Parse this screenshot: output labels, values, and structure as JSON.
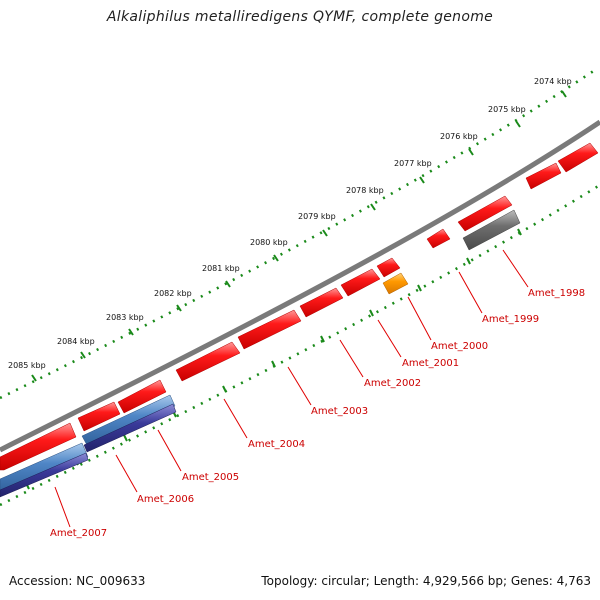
{
  "header": {
    "title": "Alkaliphilus metalliredigens QYMF, complete genome"
  },
  "footer": {
    "accession": "Accession: NC_009633",
    "summary": "Topology: circular; Length: 4,929,566 bp; Genes: 4,763"
  },
  "scale_labels": [
    "2074 kbp",
    "2075 kbp",
    "2076 kbp",
    "2077 kbp",
    "2078 kbp",
    "2079 kbp",
    "2080 kbp",
    "2081 kbp",
    "2082 kbp",
    "2083 kbp",
    "2084 kbp",
    "2085 kbp"
  ],
  "gene_labels": [
    "Amet_1998",
    "Amet_1999",
    "Amet_2000",
    "Amet_2001",
    "Amet_2002",
    "Amet_2003",
    "Amet_2004",
    "Amet_2005",
    "Amet_2006",
    "Amet_2007"
  ],
  "colors": {
    "cds": "#ff1a1a",
    "rna_orange": "#ff9900",
    "pseudo_gray": "#6e6e6e",
    "blue_light": "#4f86c6",
    "blue_dark": "#3a3a9a",
    "backbone": "#7a7a7a",
    "ticks": "#1a8a1a",
    "label_red": "#cc0000"
  }
}
